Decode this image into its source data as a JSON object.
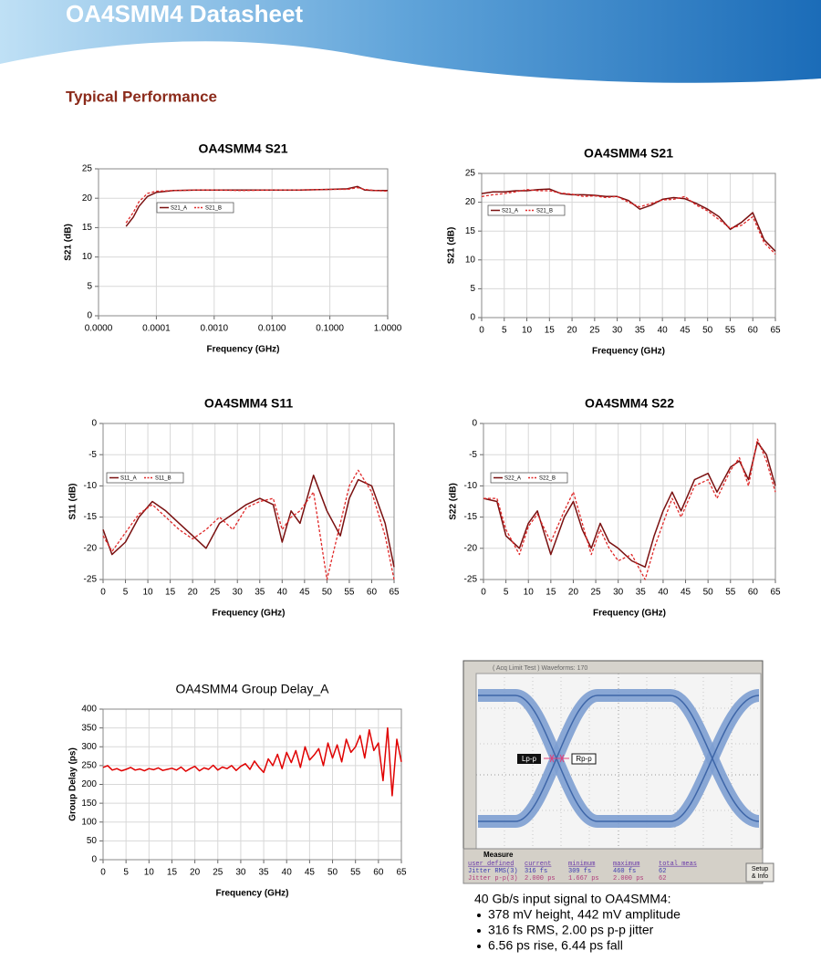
{
  "header": {
    "title": "OA4SMM4 Datasheet"
  },
  "section_title": "Typical Performance",
  "chart_data": [
    {
      "type": "line",
      "title": "OA4SMM4 S21",
      "title_bold": true,
      "xlabel": "Frequency (GHz)",
      "ylabel": "S21 (dB)",
      "xscale": "log",
      "grid": true,
      "x": [
        3e-05,
        4e-05,
        5e-05,
        7e-05,
        0.0001,
        0.0002,
        0.0005,
        0.001,
        0.003,
        0.01,
        0.03,
        0.1,
        0.2,
        0.3,
        0.4,
        0.6,
        1
      ],
      "series": [
        {
          "name": "S21_A",
          "color": "#7a1010",
          "line_style": "solid",
          "values": [
            15.2,
            16.8,
            18.6,
            20.3,
            21.0,
            21.3,
            21.4,
            21.4,
            21.4,
            21.4,
            21.4,
            21.5,
            21.6,
            22.0,
            21.4,
            21.3,
            21.3
          ]
        },
        {
          "name": "S21_B",
          "color": "#e02828",
          "line_style": "dashed",
          "values": [
            15.8,
            17.6,
            19.4,
            20.8,
            21.2,
            21.3,
            21.4,
            21.4,
            21.3,
            21.4,
            21.4,
            21.5,
            21.5,
            21.8,
            21.5,
            21.3,
            21.2
          ]
        }
      ],
      "xlim": [
        1e-05,
        1
      ],
      "xticks": [
        {
          "value": 1e-05,
          "label": "0.0000"
        },
        {
          "value": 0.0001,
          "label": "0.0001"
        },
        {
          "value": 0.001,
          "label": "0.0010"
        },
        {
          "value": 0.01,
          "label": "0.0100"
        },
        {
          "value": 0.1,
          "label": "0.1000"
        },
        {
          "value": 1,
          "label": "1.0000"
        }
      ],
      "ylim": [
        0,
        25
      ],
      "yticks": [
        0,
        5,
        10,
        15,
        20,
        25
      ]
    },
    {
      "type": "line",
      "title": "OA4SMM4 S21",
      "title_bold": true,
      "xlabel": "Frequency (GHz)",
      "ylabel": "S21 (dB)",
      "grid": true,
      "x": [
        0,
        2.5,
        5,
        7.5,
        10,
        12.5,
        15,
        17.5,
        20,
        22.5,
        25,
        27.5,
        30,
        32.5,
        35,
        37.5,
        40,
        42.5,
        45,
        47.5,
        50,
        52.5,
        55,
        57.5,
        60,
        62.5,
        65
      ],
      "series": [
        {
          "name": "S21_A",
          "color": "#7a1010",
          "line_style": "solid",
          "values": [
            21.5,
            21.8,
            21.8,
            22.0,
            22.0,
            22.2,
            22.3,
            21.5,
            21.3,
            21.3,
            21.2,
            21.0,
            21.0,
            20.3,
            18.8,
            19.5,
            20.5,
            20.8,
            20.6,
            19.8,
            18.8,
            17.5,
            15.3,
            16.5,
            18.2,
            13.5,
            11.5
          ]
        },
        {
          "name": "S21_B",
          "color": "#e02828",
          "line_style": "dashed",
          "values": [
            21.0,
            21.3,
            21.5,
            21.8,
            22.2,
            22.0,
            22.0,
            21.6,
            21.4,
            21.0,
            21.1,
            20.8,
            21.0,
            20.0,
            19.2,
            19.8,
            20.4,
            20.5,
            21.0,
            19.5,
            18.5,
            17.0,
            15.5,
            16.0,
            17.5,
            13.0,
            11.0
          ]
        }
      ],
      "xlim": [
        0,
        65
      ],
      "xticks": [
        0,
        5,
        10,
        15,
        20,
        25,
        30,
        35,
        40,
        45,
        50,
        55,
        60,
        65
      ],
      "ylim": [
        0,
        25
      ],
      "yticks": [
        0,
        5,
        10,
        15,
        20,
        25
      ]
    },
    {
      "type": "line",
      "title": "OA4SMM4 S11",
      "title_bold": true,
      "xlabel": "Frequency (GHz)",
      "ylabel": "S11 (dB)",
      "grid": true,
      "x": [
        0,
        2,
        5,
        8,
        11,
        14,
        17,
        20,
        23,
        26,
        29,
        32,
        35,
        38,
        40,
        42,
        44,
        47,
        50,
        53,
        55,
        57,
        60,
        63,
        65
      ],
      "series": [
        {
          "name": "S11_A",
          "color": "#7a1010",
          "line_style": "solid",
          "values": [
            -17,
            -21,
            -19,
            -15,
            -12.5,
            -14,
            -16,
            -18,
            -20,
            -16,
            -14.5,
            -13,
            -12,
            -13,
            -19,
            -14,
            -16,
            -8.3,
            -14,
            -18,
            -12,
            -9,
            -10,
            -16,
            -23
          ]
        },
        {
          "name": "S11_B",
          "color": "#e02828",
          "line_style": "dashed",
          "values": [
            -18,
            -20.5,
            -17.5,
            -14.5,
            -13,
            -15,
            -17,
            -18.5,
            -17,
            -15,
            -17,
            -13.5,
            -12.5,
            -12,
            -17,
            -15,
            -14,
            -11,
            -25,
            -16,
            -10,
            -7.5,
            -11,
            -18,
            -25
          ]
        }
      ],
      "xlim": [
        0,
        65
      ],
      "xticks": [
        0,
        5,
        10,
        15,
        20,
        25,
        30,
        35,
        40,
        45,
        50,
        55,
        60,
        65
      ],
      "ylim": [
        -25,
        0
      ],
      "yticks": [
        -25,
        -20,
        -15,
        -10,
        -5,
        0
      ]
    },
    {
      "type": "line",
      "title": "OA4SMM4 S22",
      "title_bold": true,
      "xlabel": "Frequency (GHz)",
      "ylabel": "S22 (dB)",
      "grid": true,
      "x": [
        0,
        3,
        5,
        8,
        10,
        12,
        15,
        18,
        20,
        22,
        24,
        26,
        28,
        30,
        33,
        36,
        38,
        40,
        42,
        44,
        47,
        50,
        52,
        55,
        57,
        59,
        61,
        63,
        65
      ],
      "series": [
        {
          "name": "S22_A",
          "color": "#7a1010",
          "line_style": "solid",
          "values": [
            -12,
            -12.5,
            -18,
            -20,
            -16,
            -14,
            -21,
            -15,
            -12.5,
            -17,
            -20,
            -16,
            -19,
            -20,
            -22,
            -23,
            -18,
            -14,
            -11,
            -14,
            -9,
            -8,
            -11,
            -7,
            -6,
            -9,
            -3,
            -5,
            -10
          ]
        },
        {
          "name": "S22_B",
          "color": "#e02828",
          "line_style": "dashed",
          "values": [
            -12,
            -12,
            -17,
            -21,
            -16.5,
            -14.5,
            -19,
            -14,
            -11,
            -16,
            -21,
            -17,
            -20,
            -22,
            -21,
            -25,
            -20,
            -16,
            -12,
            -15,
            -10,
            -9,
            -12,
            -7.5,
            -5.5,
            -10,
            -2.5,
            -6,
            -11
          ]
        }
      ],
      "xlim": [
        0,
        65
      ],
      "xticks": [
        0,
        5,
        10,
        15,
        20,
        25,
        30,
        35,
        40,
        45,
        50,
        55,
        60,
        65
      ],
      "ylim": [
        -25,
        0
      ],
      "yticks": [
        -25,
        -20,
        -15,
        -10,
        -5,
        0
      ]
    },
    {
      "type": "line",
      "title": "OA4SMM4 Group Delay_A",
      "title_bold": false,
      "xlabel": "Frequency (GHz)",
      "ylabel": "Group Delay (ps)",
      "grid": true,
      "x": [
        0,
        1,
        2,
        3,
        4,
        5,
        6,
        7,
        8,
        9,
        10,
        11,
        12,
        13,
        14,
        15,
        16,
        17,
        18,
        19,
        20,
        21,
        22,
        23,
        24,
        25,
        26,
        27,
        28,
        29,
        30,
        31,
        32,
        33,
        34,
        35,
        36,
        37,
        38,
        39,
        40,
        41,
        42,
        43,
        44,
        45,
        46,
        47,
        48,
        49,
        50,
        51,
        52,
        53,
        54,
        55,
        56,
        57,
        58,
        59,
        60,
        61,
        62,
        63,
        64,
        65
      ],
      "series": [
        {
          "color": "#e00000",
          "line_style": "solid",
          "values": [
            245,
            250,
            238,
            242,
            236,
            240,
            245,
            238,
            241,
            236,
            242,
            239,
            244,
            237,
            240,
            243,
            238,
            246,
            235,
            242,
            248,
            236,
            244,
            240,
            251,
            238,
            246,
            242,
            250,
            237,
            248,
            255,
            240,
            262,
            245,
            232,
            268,
            250,
            280,
            242,
            285,
            258,
            290,
            245,
            300,
            265,
            278,
            295,
            250,
            310,
            270,
            305,
            260,
            320,
            285,
            300,
            330,
            270,
            345,
            290,
            310,
            210,
            350,
            170,
            320,
            260
          ]
        }
      ],
      "xlim": [
        0,
        65
      ],
      "xticks": [
        0,
        5,
        10,
        15,
        20,
        25,
        30,
        35,
        40,
        45,
        50,
        55,
        60,
        65
      ],
      "ylim": [
        0,
        400
      ],
      "yticks": [
        0,
        50,
        100,
        150,
        200,
        250,
        300,
        350,
        400
      ]
    }
  ],
  "scope": {
    "status": "( Acq Limit Test ) Waveforms: 170",
    "left_marker": "Lp-p",
    "right_marker": "Rp-p",
    "measure": "Measure",
    "table": {
      "header": [
        "user defined",
        "current",
        "minimum",
        "maximum",
        "total meas"
      ],
      "rows": [
        [
          "Jitter RMS(3)",
          "316 fs",
          "309 fs",
          "460 fs",
          "62"
        ],
        [
          "Jitter p-p(3)",
          "2.000 ps",
          "1.667 ps",
          "2.000 ps",
          "62"
        ]
      ]
    },
    "button": [
      "Setup",
      "& Info"
    ]
  },
  "caption": {
    "title": "40 Gb/s input signal to OA4SMM4:",
    "bullets": [
      "378 mV height, 442 mV amplitude",
      "316 fs RMS, 2.00 ps p-p jitter",
      "6.56 ps rise, 6.44 ps fall"
    ]
  }
}
